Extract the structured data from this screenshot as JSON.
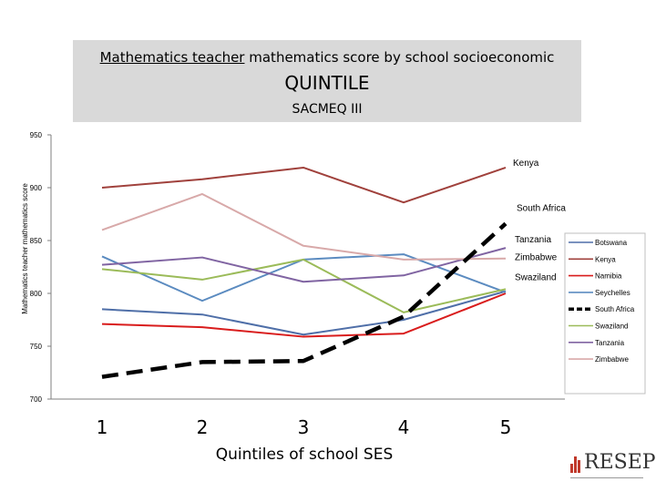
{
  "title": {
    "underlined_part": "Mathematics teacher",
    "rest_part": " mathematics score by school socioeconomic",
    "line2": "QUINTILE",
    "line3": "SACMEQ III"
  },
  "logo": {
    "text": "RESEP"
  },
  "chart_data": {
    "type": "line",
    "title": "Mathematics teacher mathematics score by school socioeconomic QUINTILE SACMEQ III",
    "xlabel": "Quintiles of school SES",
    "ylabel": "Mathematics teacher mathematics score",
    "x": [
      1,
      2,
      3,
      4,
      5
    ],
    "xticks": [
      "1",
      "2",
      "3",
      "4",
      "5"
    ],
    "ylim": [
      700,
      950
    ],
    "yticks": [
      700,
      750,
      800,
      850,
      900,
      950
    ],
    "grid": false,
    "legend_position": "right",
    "series": [
      {
        "name": "Botswana",
        "color": "#4f6fa8",
        "dashed": false,
        "values": [
          785,
          780,
          761,
          775,
          802
        ]
      },
      {
        "name": "Kenya",
        "color": "#a0413c",
        "dashed": false,
        "values": [
          900,
          908,
          919,
          886,
          919
        ]
      },
      {
        "name": "Namibia",
        "color": "#d91c1c",
        "dashed": false,
        "values": [
          771,
          768,
          759,
          762,
          800
        ]
      },
      {
        "name": "Seychelles",
        "color": "#5b8bc0",
        "dashed": false,
        "values": [
          835,
          793,
          832,
          837,
          801
        ]
      },
      {
        "name": "South Africa",
        "color": "#000000",
        "dashed": true,
        "values": [
          721,
          735,
          736,
          778,
          866
        ]
      },
      {
        "name": "Swaziland",
        "color": "#9bbb59",
        "dashed": false,
        "values": [
          823,
          813,
          832,
          782,
          804
        ]
      },
      {
        "name": "Tanzania",
        "color": "#8064a2",
        "dashed": false,
        "values": [
          827,
          834,
          811,
          817,
          843
        ]
      },
      {
        "name": "Zimbabwe",
        "color": "#d8a9a9",
        "dashed": false,
        "values": [
          860,
          894,
          845,
          832,
          833
        ]
      }
    ],
    "annotations": [
      {
        "text": "Kenya",
        "series": "Kenya"
      },
      {
        "text": "South Africa",
        "series": "South Africa"
      },
      {
        "text": "Tanzania",
        "series": "Tanzania"
      },
      {
        "text": "Zimbabwe",
        "series": "Zimbabwe"
      },
      {
        "text": "Swaziland",
        "series": "Swaziland"
      }
    ]
  }
}
